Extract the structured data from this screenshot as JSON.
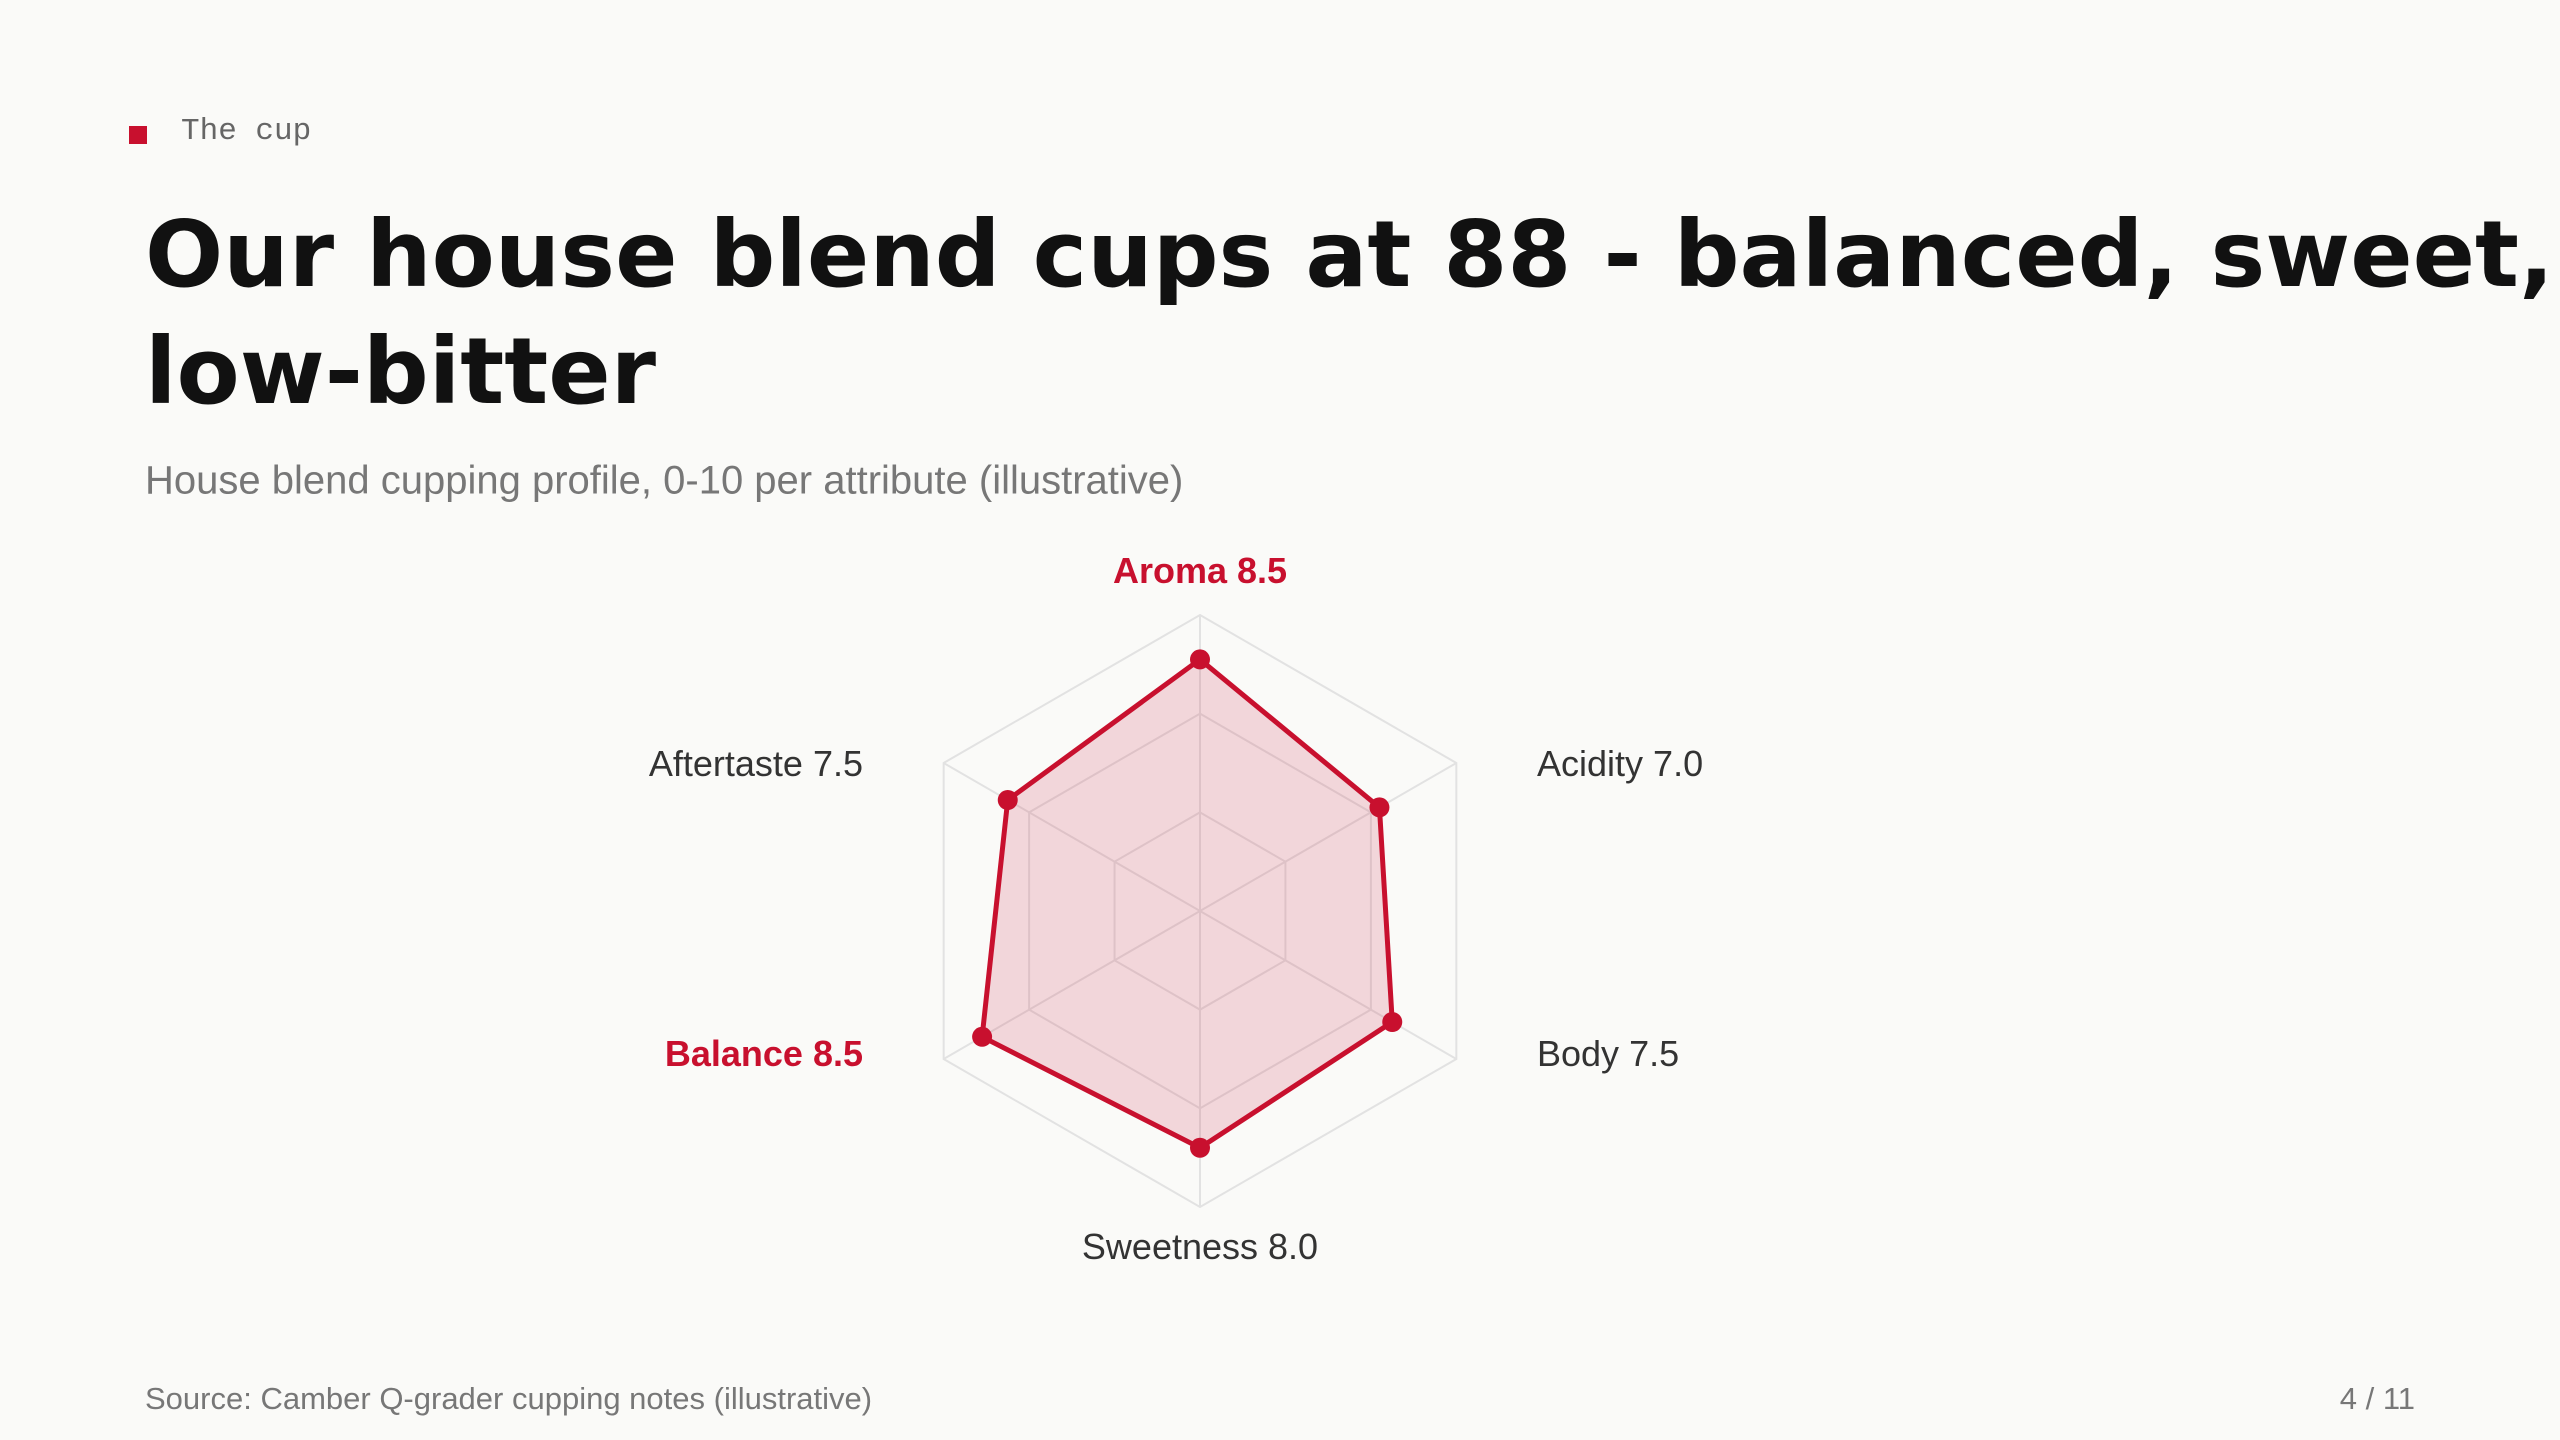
{
  "kicker": "The cup",
  "chart_data": {
    "type": "radar",
    "title": "Our house blend cups at 88 - balanced, sweet, low-bitter",
    "subtitle": "House blend cupping profile, 0-10 per attribute (illustrative)",
    "categories": [
      "Aroma",
      "Acidity",
      "Body",
      "Sweetness",
      "Balance",
      "Aftertaste"
    ],
    "values": [
      8.5,
      7.0,
      7.5,
      8.0,
      8.5,
      7.5
    ],
    "value_labels": [
      "8.5",
      "7.0",
      "7.5",
      "8.0",
      "8.5",
      "7.5"
    ],
    "rlim": [
      0,
      10
    ],
    "grid_levels": 3,
    "color": "#c8102e",
    "highlight": [
      0,
      4
    ],
    "source": "Source: Camber Q-grader cupping notes (illustrative)"
  },
  "page": "4 / 11"
}
